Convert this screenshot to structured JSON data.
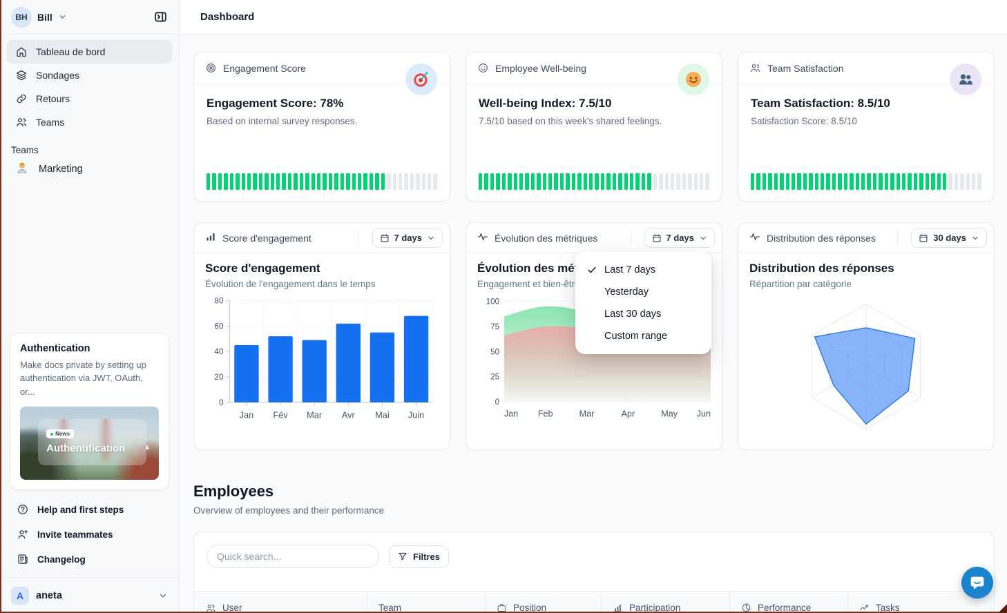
{
  "header": {
    "title": "Dashboard"
  },
  "sidebar": {
    "user": {
      "initials": "BH",
      "name": "Bill"
    },
    "nav": [
      {
        "label": "Tableau de bord",
        "icon": "home-icon",
        "active": true
      },
      {
        "label": "Sondages",
        "icon": "layers-icon"
      },
      {
        "label": "Retours",
        "icon": "link-icon"
      },
      {
        "label": "Teams",
        "icon": "users-icon"
      }
    ],
    "teams_section": {
      "label": "Teams",
      "items": [
        {
          "label": "Marketing",
          "icon": "technologist-emoji-icon"
        }
      ]
    },
    "promo": {
      "title": "Authentication",
      "description": "Make docs private by setting up authentication via JWT, OAuth, or...",
      "badge": "News",
      "image_caption": "Authentification"
    },
    "footer_nav": [
      {
        "label": "Help and first steps",
        "icon": "help-circle-icon"
      },
      {
        "label": "Invite teammates",
        "icon": "user-plus-icon"
      },
      {
        "label": "Changelog",
        "icon": "changelog-icon"
      }
    ],
    "workspace": {
      "initial": "A",
      "name": "aneta"
    }
  },
  "stat_cards": [
    {
      "header": "Engagement Score",
      "icon": "target-icon",
      "title": "Engagement Score: 78%",
      "subtitle": "Based on internal survey responses.",
      "badge_icon": "target-emoji-icon",
      "badge_bg": "#dcecfb",
      "progress": {
        "total": 40,
        "filled": 31
      }
    },
    {
      "header": "Employee Well-being",
      "icon": "smile-icon",
      "title": "Well-being Index: 7.5/10",
      "subtitle": "7.5/10 based on this week's shared feelings.",
      "badge_icon": "smile-emoji-icon",
      "badge_bg": "#def7e6",
      "progress": {
        "total": 40,
        "filled": 30
      }
    },
    {
      "header": "Team Satisfaction",
      "icon": "users-icon",
      "title": "Team Satisfaction: 8.5/10",
      "subtitle": "Satisfaction Score: 8.5/10",
      "badge_icon": "people-emoji-icon",
      "badge_bg": "#ece4f7",
      "progress": {
        "total": 40,
        "filled": 34
      }
    }
  ],
  "chart_cards": [
    {
      "header": "Score d'engagement",
      "icon": "bar-chart-icon",
      "range_label": "7 days"
    },
    {
      "header": "Évolution des métriques",
      "icon": "activity-icon",
      "range_label": "7 days"
    },
    {
      "header": "Distribution des réponses",
      "icon": "activity-icon",
      "range_label": "30 days"
    }
  ],
  "dropdown": {
    "items": [
      "Last 7 days",
      "Yesterday",
      "Last 30 days",
      "Custom range"
    ],
    "selected": "Last 7 days"
  },
  "employees": {
    "title": "Employees",
    "subtitle": "Overview of employees and their performance",
    "search_placeholder": "Quick search...",
    "filter_label": "Filtres",
    "columns": [
      {
        "label": "User",
        "icon": "users-icon"
      },
      {
        "label": "Team",
        "icon": ""
      },
      {
        "label": "Position",
        "icon": "briefcase-icon"
      },
      {
        "label": "Participation",
        "icon": "bar-chart-icon"
      },
      {
        "label": "Performance",
        "icon": "pie-chart-icon"
      },
      {
        "label": "Tasks",
        "icon": "trend-up-icon"
      }
    ]
  },
  "chart_data": [
    {
      "type": "bar",
      "title": "Score d'engagement",
      "subtitle": "Évolution de l'engagement dans le temps",
      "categories": [
        "Jan",
        "Fév",
        "Mar",
        "Avr",
        "Mai",
        "Juin"
      ],
      "values": [
        45,
        52,
        49,
        62,
        55,
        68
      ],
      "xlabel": "",
      "ylabel": "",
      "ylim": [
        0,
        80
      ],
      "yticks": [
        0,
        20,
        40,
        60,
        80
      ],
      "bar_color": "#1570ef",
      "grid": true,
      "legend": "none"
    },
    {
      "type": "area",
      "title": "Évolution des métriques",
      "subtitle": "Engagement et bien-être",
      "x": [
        "Jan",
        "Feb",
        "Mar",
        "Apr",
        "May",
        "Jun"
      ],
      "series": [
        {
          "name": "engagement",
          "color": "#86e3ae",
          "values": [
            85,
            95,
            88,
            61,
            70,
            67
          ]
        },
        {
          "name": "bien-être",
          "color": "#eeaaa8",
          "values": [
            66,
            75,
            72,
            58,
            66,
            65
          ]
        }
      ],
      "ylim": [
        0,
        100
      ],
      "yticks": [
        0,
        25,
        50,
        75,
        100
      ],
      "grid": true,
      "legend": "none"
    },
    {
      "type": "radar",
      "title": "Distribution des réponses",
      "subtitle": "Répartition par catégorie",
      "axes": 6,
      "values": [
        0.62,
        0.9,
        0.78,
        0.92,
        0.6,
        0.95
      ],
      "max": 1,
      "grid_levels": 3,
      "fill_color": "#3b82f6",
      "legend": "none"
    }
  ],
  "colors": {
    "accent_blue": "#1570ef",
    "progress_green": "#00d275",
    "segment_gray": "#e5e8ec",
    "radar_blue": "#3b82f6",
    "area_green": "#86e3ae",
    "area_pink": "#eeaaa8",
    "fab_blue": "#1a83cb"
  }
}
